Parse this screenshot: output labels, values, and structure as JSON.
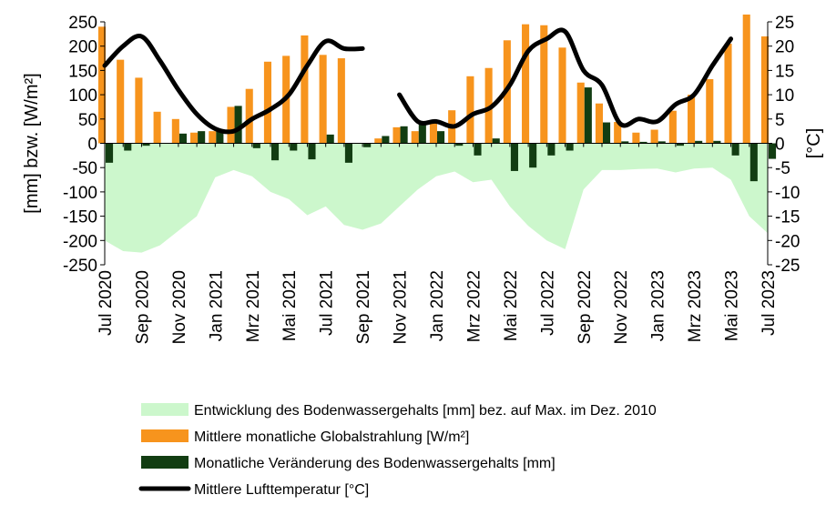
{
  "chart_data": {
    "type": "bar",
    "categories": [
      "Jul 2020",
      "Aug 2020",
      "Sep 2020",
      "Okt 2020",
      "Nov 2020",
      "Dez 2020",
      "Jan 2021",
      "Feb 2021",
      "Mrz 2021",
      "Apr 2021",
      "Mai 2021",
      "Jun 2021",
      "Jul 2021",
      "Aug 2021",
      "Sep 2021",
      "Okt 2021",
      "Nov 2021",
      "Dez 2021",
      "Jan 2022",
      "Feb 2022",
      "Mrz 2022",
      "Apr 2022",
      "Mai 2022",
      "Jun 2022",
      "Jul 2022",
      "Aug 2022",
      "Sep 2022",
      "Okt 2022",
      "Nov 2022",
      "Dez 2022",
      "Jan 2023",
      "Feb 2023",
      "Mrz 2023",
      "Apr 2023",
      "Mai 2023",
      "Jun 2023",
      "Jul 2023"
    ],
    "tick_labels": [
      "Jul 2020",
      "Sep 2020",
      "Nov 2020",
      "Jan 2021",
      "Mrz 2021",
      "Mai 2021",
      "Jul 2021",
      "Sep 2021",
      "Nov 2021",
      "Jan 2022",
      "Mrz 2022",
      "Mai 2022",
      "Jul 2022",
      "Sep 2022",
      "Nov 2022",
      "Jan 2023",
      "Mrz 2023",
      "Mai 2023",
      "Jul 2023"
    ],
    "ylabel": "[mm] bzw. [W/m²]",
    "y2label": "[°C]",
    "ylim": [
      -250,
      250
    ],
    "y2lim": [
      -25,
      25
    ],
    "yticks": [
      250,
      200,
      150,
      100,
      50,
      0,
      -50,
      -100,
      -150,
      -200,
      -250
    ],
    "y2ticks": [
      25,
      20,
      15,
      10,
      5,
      0,
      -5,
      -10,
      -15,
      -20,
      -25
    ],
    "legend_position": "bottom",
    "series": [
      {
        "name": "Entwicklung des Bodenwassergehalts [mm] bez. auf Max. im Dez. 2010",
        "kind": "area",
        "axis": "left",
        "color": "#ccf7cc",
        "values": [
          -200,
          -222,
          -225,
          -210,
          -180,
          -150,
          -70,
          -55,
          -68,
          -100,
          -115,
          -148,
          -130,
          -168,
          -178,
          -165,
          -130,
          -95,
          -68,
          -58,
          -80,
          -75,
          -130,
          -170,
          -200,
          -218,
          -95,
          -55,
          -55,
          -53,
          -52,
          -60,
          -52,
          -50,
          -75,
          -150,
          -185
        ]
      },
      {
        "name": "Mittlere monatliche Globalstrahlung [W/m²]",
        "kind": "bar",
        "axis": "left",
        "color": "#f7941d",
        "values": [
          240,
          172,
          135,
          65,
          50,
          22,
          25,
          75,
          112,
          168,
          180,
          222,
          182,
          175,
          null,
          10,
          33,
          25,
          42,
          68,
          138,
          155,
          212,
          245,
          243,
          197,
          125,
          82,
          44,
          22,
          28,
          67,
          100,
          132,
          205,
          265,
          220
        ]
      },
      {
        "name": "Monatliche Veränderung des Bodenwassergehalts [mm]",
        "kind": "bar",
        "axis": "left",
        "color": "#123d12",
        "values": [
          -40,
          -15,
          -5,
          null,
          20,
          25,
          28,
          77,
          -10,
          -35,
          -15,
          -33,
          18,
          -40,
          -8,
          15,
          35,
          40,
          25,
          -5,
          -25,
          10,
          -57,
          -50,
          -25,
          -15,
          115,
          43,
          4,
          3,
          4,
          -5,
          5,
          5,
          -25,
          -78,
          -32
        ]
      },
      {
        "name": "Mittlere Lufttemperatur [°C]",
        "kind": "line",
        "axis": "right",
        "color": "#000000",
        "segments": [
          {
            "start_index": 0,
            "values": [
              16,
              20,
              22,
              17,
              11,
              6,
              3,
              2.5,
              5,
              7,
              10,
              16,
              21,
              19.5,
              19.5
            ]
          },
          {
            "start_index": 16,
            "values": [
              10,
              4.5,
              4.5,
              3.5,
              6,
              7.5,
              12,
              19,
              21.5,
              23,
              15,
              12,
              4,
              5,
              4.5,
              8,
              10,
              16,
              21.5
            ]
          }
        ]
      }
    ]
  }
}
